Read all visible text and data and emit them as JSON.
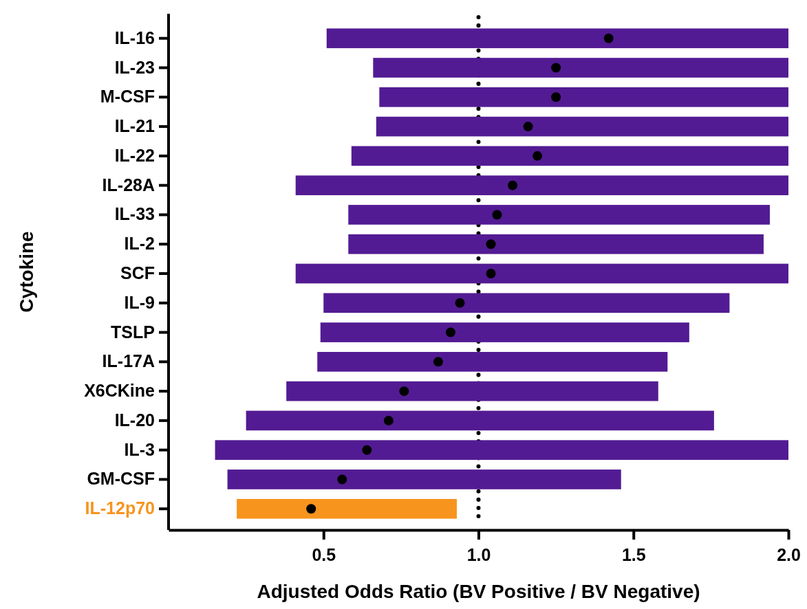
{
  "chart_data": {
    "type": "bar",
    "orientation": "horizontal",
    "xlabel": "Adjusted Odds Ratio (BV Positive / BV Negative)",
    "ylabel": "Cytokine",
    "categories": [
      "IL-16",
      "IL-23",
      "M-CSF",
      "IL-21",
      "IL-22",
      "IL-28A",
      "IL-33",
      "IL-2",
      "SCF",
      "IL-9",
      "TSLP",
      "IL-17A",
      "X6CKine",
      "IL-20",
      "IL-3",
      "GM-CSF",
      "IL-12p70"
    ],
    "series": [
      {
        "type": "bar",
        "color": "#531b93",
        "colors": [
          "#531b93",
          "#531b93",
          "#531b93",
          "#531b93",
          "#531b93",
          "#531b93",
          "#531b93",
          "#531b93",
          "#531b93",
          "#531b93",
          "#531b93",
          "#531b93",
          "#531b93",
          "#531b93",
          "#531b93",
          "#531b93",
          "#f7941d"
        ],
        "base": [
          0.51,
          0.66,
          0.68,
          0.67,
          0.59,
          0.41,
          0.58,
          0.58,
          0.41,
          0.5,
          0.49,
          0.48,
          0.38,
          0.25,
          0.15,
          0.19,
          0.22
        ],
        "values": [
          1.49,
          1.34,
          1.32,
          1.33,
          1.41,
          1.59,
          1.36,
          1.34,
          1.59,
          1.31,
          1.19,
          1.13,
          1.2,
          1.51,
          1.85,
          1.27,
          0.71
        ]
      },
      {
        "type": "scatter",
        "color": "#000000",
        "marker": "circle",
        "values": [
          1.42,
          1.25,
          1.25,
          1.16,
          1.19,
          1.11,
          1.06,
          1.04,
          1.04,
          0.94,
          0.91,
          0.87,
          0.76,
          0.71,
          0.64,
          0.56,
          0.46
        ]
      }
    ],
    "xlim": [
      0,
      2
    ],
    "xticks": [
      {
        "value": 0.5,
        "label": "0.5"
      },
      {
        "value": 1,
        "label": "1.0"
      },
      {
        "value": 1.5,
        "label": "1.5"
      },
      {
        "value": 2,
        "label": "2.0"
      }
    ],
    "ref_lines": [
      {
        "axis": "x",
        "value": 1,
        "color": "#000000",
        "line_style": "dotted"
      }
    ],
    "grid": false
  }
}
